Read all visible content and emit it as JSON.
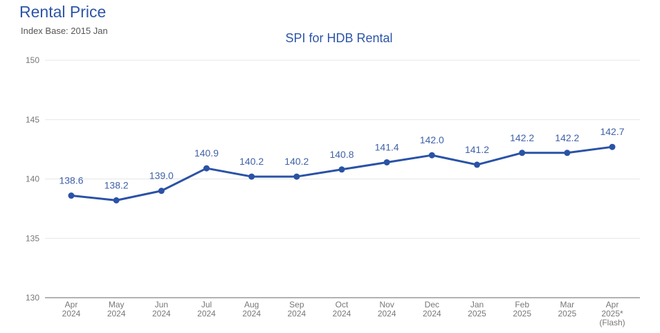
{
  "header": {
    "title": "Rental Price",
    "subtitle": "Index Base: 2015 Jan"
  },
  "chart_data": {
    "type": "line",
    "title": "SPI for HDB Rental",
    "xlabel": "",
    "ylabel": "",
    "categories": [
      [
        "Apr",
        "2024"
      ],
      [
        "May",
        "2024"
      ],
      [
        "Jun",
        "2024"
      ],
      [
        "Jul",
        "2024"
      ],
      [
        "Aug",
        "2024"
      ],
      [
        "Sep",
        "2024"
      ],
      [
        "Oct",
        "2024"
      ],
      [
        "Nov",
        "2024"
      ],
      [
        "Dec",
        "2024"
      ],
      [
        "Jan",
        "2025"
      ],
      [
        "Feb",
        "2025"
      ],
      [
        "Mar",
        "2025"
      ],
      [
        "Apr",
        "2025*",
        "(Flash)"
      ]
    ],
    "values": [
      138.6,
      138.2,
      139.0,
      140.9,
      140.2,
      140.2,
      140.8,
      141.4,
      142.0,
      141.2,
      142.2,
      142.2,
      142.7
    ],
    "data_labels": [
      "138.6",
      "138.2",
      "139.0",
      "140.9",
      "140.2",
      "140.2",
      "140.8",
      "141.4",
      "142.0",
      "141.2",
      "142.2",
      "142.2",
      "142.7"
    ],
    "ylim": [
      130,
      150
    ],
    "yticks": [
      "130",
      "135",
      "140",
      "145",
      "150"
    ],
    "grid": true,
    "legend": "none",
    "color": "#2a52a6"
  }
}
